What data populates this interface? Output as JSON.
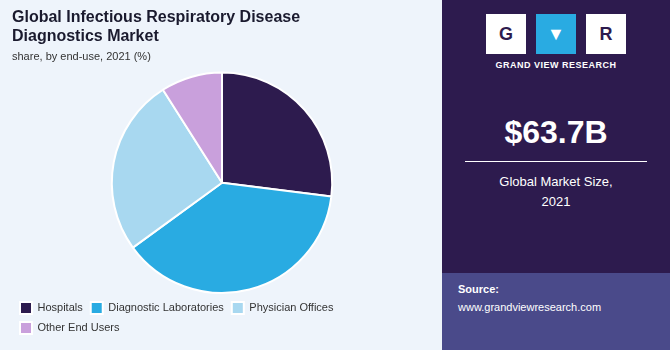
{
  "chart_data": {
    "type": "pie",
    "title": [
      "Global Infectious Respiratory Disease",
      "Diagnostics Market"
    ],
    "subtitle": "share, by end-use, 2021 (%)",
    "categories": [
      "Hospitals",
      "Diagnostic Laboratories",
      "Physician Offices",
      "Other End Users"
    ],
    "values": [
      27,
      38,
      26,
      9
    ],
    "colors": [
      "#2d1b4e",
      "#29abe2",
      "#a8d8f0",
      "#c9a0dc"
    ],
    "legend": "bottom",
    "annotations": [
      "$63.7B",
      "Global Market Size,\n2021",
      "G",
      "▼",
      "R",
      "GRAND VIEW RESEARCH",
      "Source:",
      "www.grandviewresearch.com"
    ]
  }
}
